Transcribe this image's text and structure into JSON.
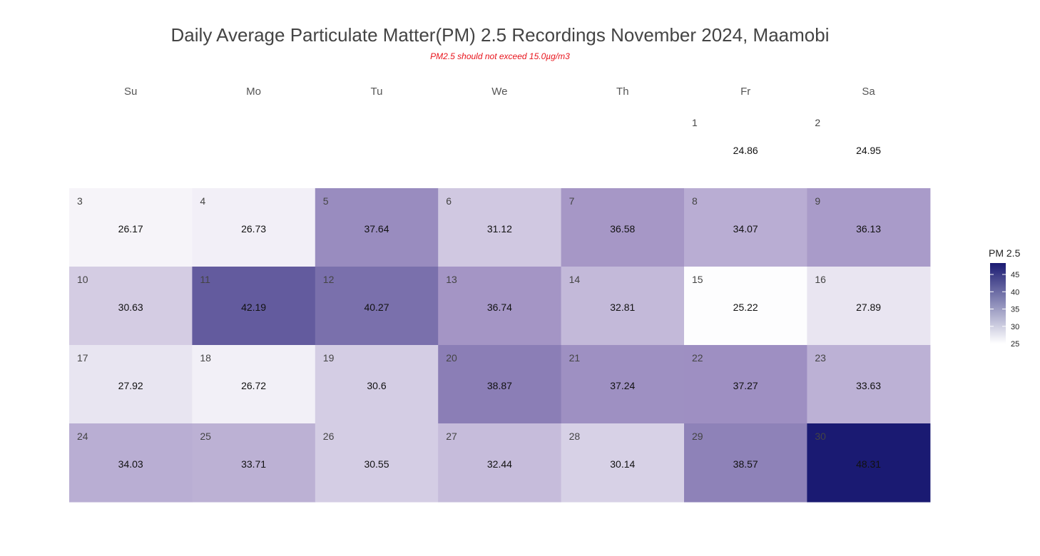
{
  "chart_data": {
    "type": "heatmap",
    "title": "Daily Average Particulate Matter(PM) 2.5 Recordings November 2024,  Maamobi",
    "subtitle": "PM2.5 should not exceed 15.0µg/m3",
    "weekdays": [
      "Su",
      "Mo",
      "Tu",
      "We",
      "Th",
      "Fr",
      "Sa"
    ],
    "first_weekday_index": 5,
    "days": [
      1,
      2,
      3,
      4,
      5,
      6,
      7,
      8,
      9,
      10,
      11,
      12,
      13,
      14,
      15,
      16,
      17,
      18,
      19,
      20,
      21,
      22,
      23,
      24,
      25,
      26,
      27,
      28,
      29,
      30
    ],
    "values": [
      24.86,
      24.95,
      26.17,
      26.73,
      37.64,
      31.12,
      36.58,
      34.07,
      36.13,
      30.63,
      42.19,
      40.27,
      36.74,
      32.81,
      25.22,
      27.89,
      27.92,
      26.72,
      30.6,
      38.87,
      37.24,
      37.27,
      33.63,
      34.03,
      33.71,
      30.55,
      32.44,
      30.14,
      38.57,
      48.31
    ],
    "uncolored_days": [
      1,
      2
    ],
    "legend": {
      "title": "PM 2.5",
      "range": [
        25,
        48.31
      ],
      "ticks": [
        25,
        30,
        35,
        40,
        45
      ],
      "colors": [
        "#ffffff",
        "#1a1a72"
      ]
    }
  }
}
